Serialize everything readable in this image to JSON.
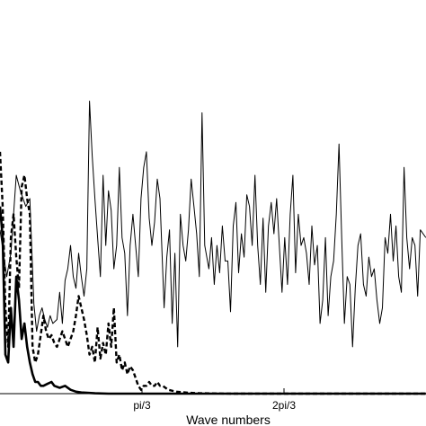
{
  "chart_data": {
    "type": "line",
    "title": "",
    "xlabel": "Wave numbers",
    "ylabel": "",
    "xlim": [
      0,
      3.14159
    ],
    "ylim": [
      0,
      1
    ],
    "grid": false,
    "legend": "none",
    "xticks": [
      {
        "value": 1.0472,
        "label": "pi/3"
      },
      {
        "value": 2.0944,
        "label": "2pi/3"
      }
    ],
    "series": [
      {
        "style": "thin-solid",
        "points": [
          [
            0.0,
            0.42
          ],
          [
            0.05,
            0.3
          ],
          [
            0.08,
            0.36
          ],
          [
            0.12,
            0.56
          ],
          [
            0.15,
            0.52
          ],
          [
            0.19,
            0.48
          ],
          [
            0.22,
            0.5
          ],
          [
            0.25,
            0.23
          ],
          [
            0.27,
            0.16
          ],
          [
            0.29,
            0.2
          ],
          [
            0.31,
            0.22
          ],
          [
            0.33,
            0.19
          ],
          [
            0.35,
            0.17
          ],
          [
            0.37,
            0.2
          ],
          [
            0.39,
            0.18
          ],
          [
            0.42,
            0.19
          ],
          [
            0.44,
            0.26
          ],
          [
            0.46,
            0.18
          ],
          [
            0.48,
            0.29
          ],
          [
            0.5,
            0.32
          ],
          [
            0.52,
            0.38
          ],
          [
            0.54,
            0.3
          ],
          [
            0.56,
            0.27
          ],
          [
            0.58,
            0.36
          ],
          [
            0.6,
            0.3
          ],
          [
            0.62,
            0.25
          ],
          [
            0.64,
            0.32
          ],
          [
            0.66,
            0.75
          ],
          [
            0.68,
            0.61
          ],
          [
            0.7,
            0.5
          ],
          [
            0.72,
            0.4
          ],
          [
            0.74,
            0.3
          ],
          [
            0.76,
            0.56
          ],
          [
            0.78,
            0.38
          ],
          [
            0.8,
            0.52
          ],
          [
            0.82,
            0.47
          ],
          [
            0.84,
            0.32
          ],
          [
            0.86,
            0.38
          ],
          [
            0.88,
            0.58
          ],
          [
            0.9,
            0.4
          ],
          [
            0.92,
            0.36
          ],
          [
            0.94,
            0.2
          ],
          [
            0.96,
            0.38
          ],
          [
            0.98,
            0.46
          ],
          [
            1.0,
            0.38
          ],
          [
            1.02,
            0.3
          ],
          [
            1.04,
            0.5
          ],
          [
            1.06,
            0.58
          ],
          [
            1.08,
            0.62
          ],
          [
            1.1,
            0.45
          ],
          [
            1.12,
            0.38
          ],
          [
            1.14,
            0.44
          ],
          [
            1.16,
            0.55
          ],
          [
            1.18,
            0.5
          ],
          [
            1.21,
            0.22
          ],
          [
            1.23,
            0.35
          ],
          [
            1.25,
            0.42
          ],
          [
            1.27,
            0.18
          ],
          [
            1.29,
            0.36
          ],
          [
            1.31,
            0.12
          ],
          [
            1.33,
            0.46
          ],
          [
            1.35,
            0.38
          ],
          [
            1.37,
            0.34
          ],
          [
            1.39,
            0.42
          ],
          [
            1.41,
            0.55
          ],
          [
            1.43,
            0.48
          ],
          [
            1.45,
            0.41
          ],
          [
            1.47,
            0.3
          ],
          [
            1.49,
            0.72
          ],
          [
            1.51,
            0.38
          ],
          [
            1.54,
            0.32
          ],
          [
            1.56,
            0.4
          ],
          [
            1.58,
            0.28
          ],
          [
            1.6,
            0.38
          ],
          [
            1.62,
            0.31
          ],
          [
            1.64,
            0.43
          ],
          [
            1.66,
            0.34
          ],
          [
            1.68,
            0.34
          ],
          [
            1.7,
            0.21
          ],
          [
            1.72,
            0.43
          ],
          [
            1.74,
            0.49
          ],
          [
            1.76,
            0.31
          ],
          [
            1.78,
            0.41
          ],
          [
            1.8,
            0.35
          ],
          [
            1.82,
            0.51
          ],
          [
            1.84,
            0.48
          ],
          [
            1.86,
            0.38
          ],
          [
            1.88,
            0.56
          ],
          [
            1.9,
            0.38
          ],
          [
            1.92,
            0.28
          ],
          [
            1.94,
            0.45
          ],
          [
            1.96,
            0.26
          ],
          [
            1.98,
            0.43
          ],
          [
            2.0,
            0.49
          ],
          [
            2.02,
            0.41
          ],
          [
            2.04,
            0.5
          ],
          [
            2.06,
            0.38
          ],
          [
            2.08,
            0.26
          ],
          [
            2.1,
            0.4
          ],
          [
            2.12,
            0.28
          ],
          [
            2.14,
            0.46
          ],
          [
            2.16,
            0.56
          ],
          [
            2.18,
            0.31
          ],
          [
            2.2,
            0.46
          ],
          [
            2.22,
            0.38
          ],
          [
            2.24,
            0.4
          ],
          [
            2.26,
            0.36
          ],
          [
            2.28,
            0.28
          ],
          [
            2.3,
            0.43
          ],
          [
            2.32,
            0.33
          ],
          [
            2.34,
            0.38
          ],
          [
            2.36,
            0.18
          ],
          [
            2.38,
            0.24
          ],
          [
            2.4,
            0.4
          ],
          [
            2.42,
            0.2
          ],
          [
            2.44,
            0.3
          ],
          [
            2.46,
            0.34
          ],
          [
            2.48,
            0.46
          ],
          [
            2.5,
            0.64
          ],
          [
            2.52,
            0.4
          ],
          [
            2.54,
            0.18
          ],
          [
            2.56,
            0.3
          ],
          [
            2.58,
            0.28
          ],
          [
            2.6,
            0.12
          ],
          [
            2.62,
            0.27
          ],
          [
            2.64,
            0.38
          ],
          [
            2.66,
            0.41
          ],
          [
            2.68,
            0.28
          ],
          [
            2.7,
            0.25
          ],
          [
            2.72,
            0.35
          ],
          [
            2.74,
            0.3
          ],
          [
            2.76,
            0.32
          ],
          [
            2.78,
            0.24
          ],
          [
            2.8,
            0.18
          ],
          [
            2.82,
            0.22
          ],
          [
            2.84,
            0.4
          ],
          [
            2.86,
            0.36
          ],
          [
            2.88,
            0.46
          ],
          [
            2.9,
            0.34
          ],
          [
            2.92,
            0.43
          ],
          [
            2.94,
            0.3
          ],
          [
            2.96,
            0.26
          ],
          [
            2.98,
            0.58
          ],
          [
            3.0,
            0.4
          ],
          [
            3.02,
            0.32
          ],
          [
            3.04,
            0.4
          ],
          [
            3.06,
            0.38
          ],
          [
            3.08,
            0.25
          ],
          [
            3.1,
            0.42
          ],
          [
            3.14,
            0.4
          ]
        ]
      },
      {
        "style": "dashed",
        "points": [
          [
            0.0,
            0.62
          ],
          [
            0.02,
            0.48
          ],
          [
            0.04,
            0.22
          ],
          [
            0.06,
            0.12
          ],
          [
            0.08,
            0.4
          ],
          [
            0.1,
            0.46
          ],
          [
            0.12,
            0.35
          ],
          [
            0.14,
            0.27
          ],
          [
            0.16,
            0.53
          ],
          [
            0.18,
            0.56
          ],
          [
            0.2,
            0.5
          ],
          [
            0.22,
            0.46
          ],
          [
            0.24,
            0.12
          ],
          [
            0.26,
            0.08
          ],
          [
            0.28,
            0.1
          ],
          [
            0.3,
            0.15
          ],
          [
            0.32,
            0.2
          ],
          [
            0.34,
            0.16
          ],
          [
            0.36,
            0.14
          ],
          [
            0.38,
            0.15
          ],
          [
            0.4,
            0.13
          ],
          [
            0.42,
            0.12
          ],
          [
            0.44,
            0.14
          ],
          [
            0.46,
            0.16
          ],
          [
            0.48,
            0.14
          ],
          [
            0.5,
            0.12
          ],
          [
            0.52,
            0.14
          ],
          [
            0.54,
            0.16
          ],
          [
            0.56,
            0.2
          ],
          [
            0.58,
            0.25
          ],
          [
            0.6,
            0.22
          ],
          [
            0.62,
            0.19
          ],
          [
            0.64,
            0.15
          ],
          [
            0.66,
            0.1
          ],
          [
            0.68,
            0.12
          ],
          [
            0.7,
            0.08
          ],
          [
            0.72,
            0.17
          ],
          [
            0.74,
            0.09
          ],
          [
            0.76,
            0.13
          ],
          [
            0.78,
            0.1
          ],
          [
            0.8,
            0.18
          ],
          [
            0.82,
            0.12
          ],
          [
            0.84,
            0.22
          ],
          [
            0.86,
            0.08
          ],
          [
            0.88,
            0.1
          ],
          [
            0.9,
            0.06
          ],
          [
            0.92,
            0.08
          ],
          [
            0.94,
            0.05
          ],
          [
            0.96,
            0.07
          ],
          [
            0.98,
            0.06
          ],
          [
            1.0,
            0.04
          ],
          [
            1.02,
            0.02
          ],
          [
            1.04,
            0.01
          ],
          [
            1.06,
            0.02
          ],
          [
            1.08,
            0.02
          ],
          [
            1.1,
            0.03
          ],
          [
            1.12,
            0.02
          ],
          [
            1.14,
            0.02
          ],
          [
            1.16,
            0.03
          ],
          [
            1.18,
            0.02
          ],
          [
            1.2,
            0.02
          ],
          [
            1.24,
            0.01
          ],
          [
            1.3,
            0.005
          ],
          [
            1.4,
            0.002
          ],
          [
            1.5,
            0.001
          ],
          [
            1.7,
            0.0
          ],
          [
            3.14,
            0.0
          ]
        ]
      },
      {
        "style": "thick-solid",
        "points": [
          [
            0.0,
            0.48
          ],
          [
            0.02,
            0.4
          ],
          [
            0.04,
            0.1
          ],
          [
            0.06,
            0.08
          ],
          [
            0.08,
            0.22
          ],
          [
            0.1,
            0.12
          ],
          [
            0.12,
            0.3
          ],
          [
            0.14,
            0.24
          ],
          [
            0.16,
            0.14
          ],
          [
            0.18,
            0.18
          ],
          [
            0.2,
            0.12
          ],
          [
            0.22,
            0.08
          ],
          [
            0.24,
            0.05
          ],
          [
            0.26,
            0.03
          ],
          [
            0.28,
            0.03
          ],
          [
            0.3,
            0.02
          ],
          [
            0.32,
            0.02
          ],
          [
            0.35,
            0.025
          ],
          [
            0.38,
            0.03
          ],
          [
            0.4,
            0.02
          ],
          [
            0.44,
            0.015
          ],
          [
            0.48,
            0.02
          ],
          [
            0.52,
            0.01
          ],
          [
            0.56,
            0.005
          ],
          [
            0.6,
            0.003
          ],
          [
            0.7,
            0.001
          ],
          [
            0.8,
            0.0
          ],
          [
            3.14,
            0.0
          ]
        ]
      }
    ]
  }
}
